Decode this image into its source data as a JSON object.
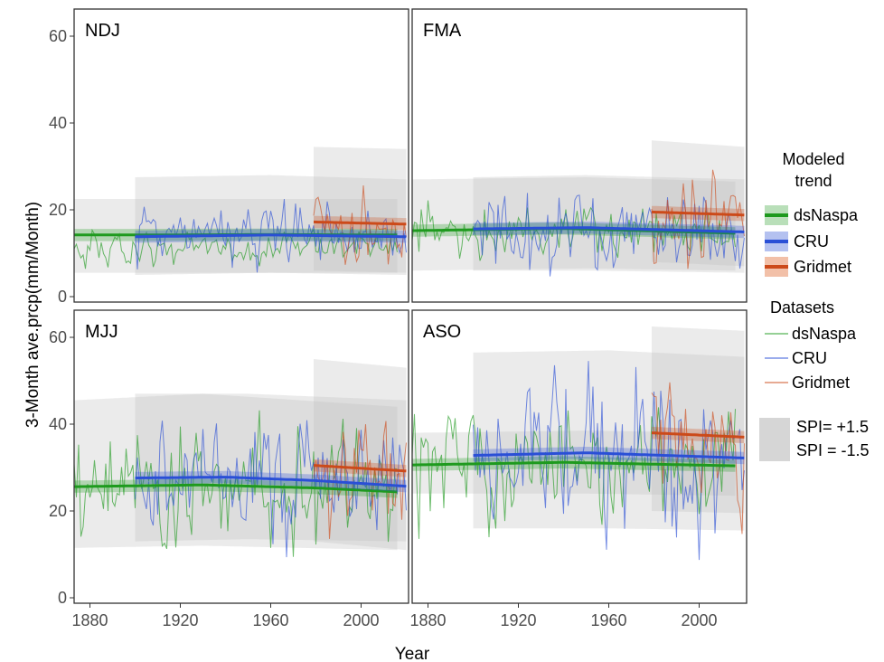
{
  "chart_data": {
    "type": "line",
    "xlabel": "Year",
    "ylabel": "3-Month ave.prcp(mm/Month)",
    "xlim": [
      1873,
      2021
    ],
    "ylim": [
      0,
      65
    ],
    "x_ticks": [
      1880,
      1920,
      1960,
      2000
    ],
    "y_ticks": [
      0,
      20,
      40,
      60
    ],
    "colors": {
      "dsNaspa": "#1e9a1e",
      "CRU": "#2a4fd6",
      "Gridmet": "#cc4a1a"
    },
    "legend": {
      "trend_title_1": "Modeled",
      "trend_title_2": "trend",
      "trend_items": [
        "dsNaspa",
        "CRU",
        "Gridmet"
      ],
      "datasets_title": "Datasets",
      "dataset_items": [
        "dsNaspa",
        "CRU",
        "Gridmet"
      ],
      "spi_high": "SPI= +1.5",
      "spi_low": "SPI = -1.5"
    },
    "panels": [
      {
        "title": "NDJ",
        "series": [
          {
            "name": "dsNaspa",
            "start": 1873,
            "end": 2016,
            "mean": 11.5,
            "amp": 2.8,
            "trend": [
              [
                1873,
                14.2
              ],
              [
                1900,
                14.2
              ],
              [
                1960,
                14.3
              ],
              [
                2016,
                14.2
              ]
            ],
            "spi_band": [
              [
                1873,
                22.5,
                5.5
              ],
              [
                1900,
                22.5,
                5.5
              ],
              [
                2016,
                22.5,
                5.5
              ]
            ]
          },
          {
            "name": "CRU",
            "start": 1900,
            "end": 2020,
            "mean": 13.5,
            "amp": 5.5,
            "trend": [
              [
                1900,
                13.8
              ],
              [
                1960,
                14.2
              ],
              [
                2020,
                13.8
              ]
            ],
            "spi_band": [
              [
                1900,
                27.5,
                5.0
              ],
              [
                1960,
                28.0,
                5.5
              ],
              [
                2020,
                27.0,
                5.0
              ]
            ]
          },
          {
            "name": "Gridmet",
            "start": 1979,
            "end": 2020,
            "mean": 15.5,
            "amp": 6.5,
            "trend": [
              [
                1979,
                17.2
              ],
              [
                2020,
                16.7
              ]
            ],
            "spi_band": [
              [
                1979,
                34.5,
                6.0
              ],
              [
                2020,
                34.0,
                5.5
              ]
            ]
          }
        ]
      },
      {
        "title": "FMA",
        "series": [
          {
            "name": "dsNaspa",
            "start": 1873,
            "end": 2016,
            "mean": 15.0,
            "amp": 4.5,
            "trend": [
              [
                1873,
                15.2
              ],
              [
                1940,
                15.7
              ],
              [
                2016,
                14.6
              ]
            ],
            "spi_band": [
              [
                1873,
                27.0,
                6.0
              ],
              [
                1950,
                27.5,
                6.5
              ],
              [
                2016,
                26.5,
                6.0
              ]
            ]
          },
          {
            "name": "CRU",
            "start": 1900,
            "end": 2020,
            "mean": 15.0,
            "amp": 6.5,
            "trend": [
              [
                1900,
                15.6
              ],
              [
                1950,
                15.9
              ],
              [
                2020,
                14.9
              ]
            ],
            "spi_band": [
              [
                1900,
                27.5,
                6.0
              ],
              [
                1950,
                28.0,
                6.0
              ],
              [
                2020,
                27.0,
                5.5
              ]
            ]
          },
          {
            "name": "Gridmet",
            "start": 1979,
            "end": 2020,
            "mean": 18.5,
            "amp": 8.5,
            "trend": [
              [
                1979,
                19.5
              ],
              [
                2020,
                18.8
              ]
            ],
            "spi_band": [
              [
                1979,
                36.0,
                8.0
              ],
              [
                2020,
                34.5,
                7.0
              ]
            ]
          }
        ]
      },
      {
        "title": "MJJ",
        "series": [
          {
            "name": "dsNaspa",
            "start": 1873,
            "end": 2016,
            "mean": 25.5,
            "amp": 9.5,
            "trend": [
              [
                1873,
                25.6
              ],
              [
                1930,
                26.0
              ],
              [
                1980,
                25.3
              ],
              [
                2016,
                24.4
              ]
            ],
            "spi_band": [
              [
                1873,
                45.5,
                11.5
              ],
              [
                1930,
                47.0,
                12.0
              ],
              [
                2016,
                44.0,
                11.0
              ]
            ]
          },
          {
            "name": "CRU",
            "start": 1900,
            "end": 2020,
            "mean": 27.0,
            "amp": 10.5,
            "trend": [
              [
                1900,
                27.6
              ],
              [
                1940,
                27.8
              ],
              [
                1980,
                27.0
              ],
              [
                2020,
                25.7
              ]
            ],
            "spi_band": [
              [
                1900,
                47.0,
                13.0
              ],
              [
                1950,
                47.0,
                13.5
              ],
              [
                2020,
                45.5,
                13.0
              ]
            ]
          },
          {
            "name": "Gridmet",
            "start": 1979,
            "end": 2020,
            "mean": 28.5,
            "amp": 11.0,
            "trend": [
              [
                1979,
                30.5
              ],
              [
                2020,
                29.2
              ]
            ],
            "spi_band": [
              [
                1979,
                55.0,
                13.0
              ],
              [
                2020,
                53.0,
                11.0
              ]
            ]
          }
        ]
      },
      {
        "title": "ASO",
        "series": [
          {
            "name": "dsNaspa",
            "start": 1873,
            "end": 2016,
            "mean": 30.5,
            "amp": 9.0,
            "trend": [
              [
                1873,
                30.6
              ],
              [
                1940,
                31.2
              ],
              [
                2016,
                30.4
              ]
            ],
            "spi_band": [
              [
                1873,
                38.0,
                24.0
              ],
              [
                1950,
                38.5,
                24.0
              ],
              [
                2016,
                38.0,
                23.5
              ]
            ]
          },
          {
            "name": "CRU",
            "start": 1900,
            "end": 2020,
            "mean": 32.0,
            "amp": 13.0,
            "trend": [
              [
                1900,
                32.8
              ],
              [
                1950,
                33.4
              ],
              [
                2020,
                32.2
              ]
            ],
            "spi_band": [
              [
                1900,
                56.5,
                16.0
              ],
              [
                1960,
                57.0,
                16.0
              ],
              [
                2020,
                55.5,
                15.5
              ]
            ]
          },
          {
            "name": "Gridmet",
            "start": 1979,
            "end": 2020,
            "mean": 36.0,
            "amp": 12.0,
            "trend": [
              [
                1979,
                38.0
              ],
              [
                2020,
                37.0
              ]
            ],
            "spi_band": [
              [
                1979,
                62.5,
                20.0
              ],
              [
                2020,
                61.5,
                19.5
              ]
            ]
          }
        ]
      }
    ]
  }
}
